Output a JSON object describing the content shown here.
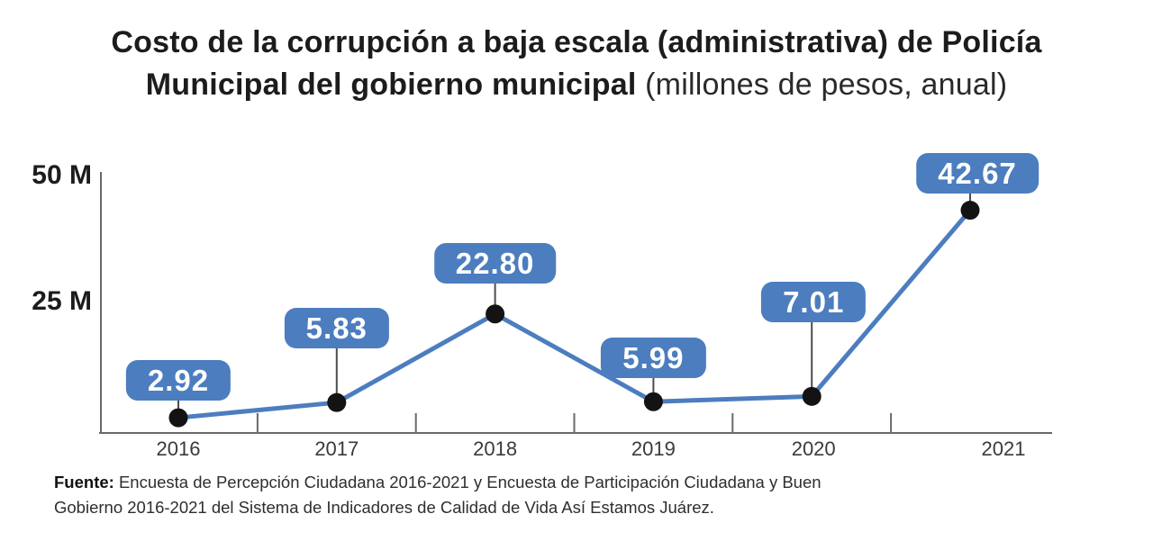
{
  "title": {
    "line1_bold": "Costo de la corrupción a baja escala (administrativa) de Policía",
    "line2_bold": "Municipal del gobierno municipal",
    "line2_light": " (millones de pesos, anual)"
  },
  "chart_data": {
    "type": "line",
    "title": "Costo de la corrupción a baja escala (administrativa) de Policía Municipal del gobierno municipal (millones de pesos, anual)",
    "categories": [
      "2016",
      "2017",
      "2018",
      "2019",
      "2020",
      "2021"
    ],
    "values": [
      2.92,
      5.83,
      22.8,
      5.99,
      7.01,
      42.67
    ],
    "value_labels": [
      "2.92",
      "5.83",
      "22.80",
      "5.99",
      "7.01",
      "42.67"
    ],
    "unit": "millones de pesos (anual)",
    "xlabel": "",
    "ylabel": "",
    "y_axis": {
      "ticks": [
        "50 M",
        "25 M"
      ],
      "tick_values": [
        50,
        25
      ],
      "range": [
        0,
        50
      ]
    },
    "grid": false,
    "legend": false,
    "marker": "black-dot",
    "colors": {
      "line": "#4c7dbf",
      "marker": "#131313",
      "label_bg": "#4c7dbf",
      "label_text": "#ffffff",
      "axis": "#6a6a6a",
      "connector": "#4d4d4d"
    }
  },
  "footer": {
    "line1_bold": "Fuente:",
    "line1_rest": " Encuesta de Percepción Ciudadana 2016-2021 y Encuesta de Participación Ciudadana y Buen",
    "line2": "Gobierno 2016-2021 del Sistema de Indicadores de Calidad de Vida Así Estamos Juárez."
  }
}
